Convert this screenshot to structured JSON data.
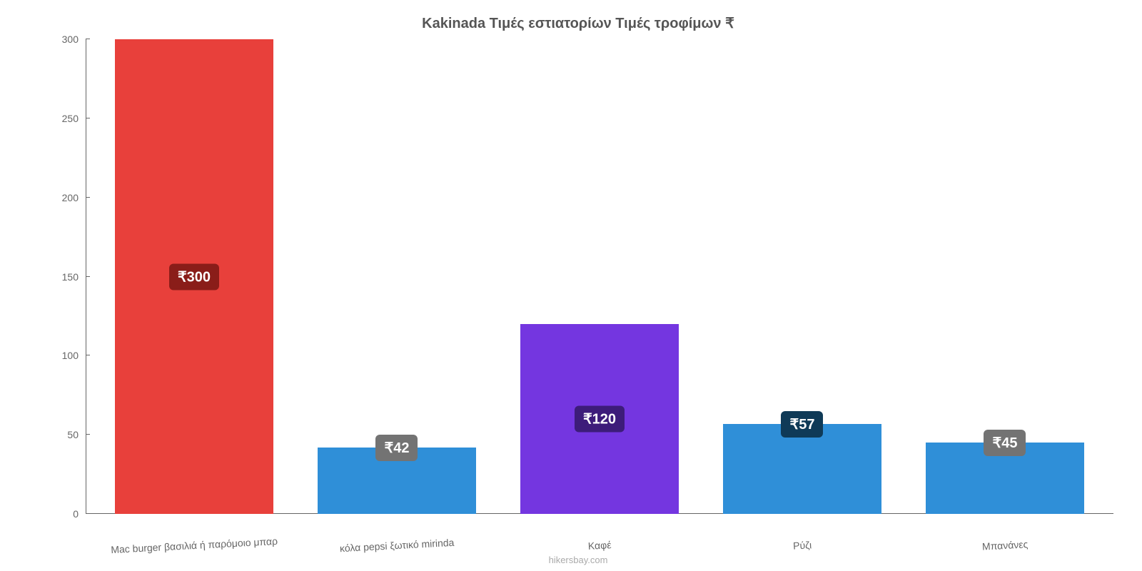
{
  "chart": {
    "type": "bar",
    "title": "Kakinada Τιμές εστιατορίων Τιμές τροφίμων ₹",
    "title_fontsize": 20,
    "title_color": "#555555",
    "background_color": "#ffffff",
    "axis_color": "#666666",
    "label_color": "#666666",
    "label_fontsize": 14,
    "ylim": [
      0,
      300
    ],
    "ytick_step": 50,
    "yticks": [
      0,
      50,
      100,
      150,
      200,
      250,
      300
    ],
    "bar_width_ratio": 0.78,
    "categories": [
      "Mac burger βασιλιά ή παρόμοιο μπαρ",
      "κόλα pepsi ξωτικό mirinda",
      "Καφέ",
      "Ρύζι",
      "Μπανάνες"
    ],
    "values": [
      300,
      42,
      120,
      57,
      45
    ],
    "value_labels": [
      "₹300",
      "₹42",
      "₹120",
      "₹57",
      "₹45"
    ],
    "bar_colors": [
      "#e8403b",
      "#2f8fd8",
      "#7436e0",
      "#2f8fd8",
      "#2f8fd8"
    ],
    "badge_colors": [
      "#8a1d19",
      "#737373",
      "#3d1c7a",
      "#0f3a57",
      "#737373"
    ],
    "badge_fontsize": 20,
    "badge_text_color": "#ffffff",
    "x_label_rotation_deg": -3,
    "credit": "hikersbay.com",
    "credit_color": "#aaaaaa",
    "credit_fontsize": 13
  }
}
